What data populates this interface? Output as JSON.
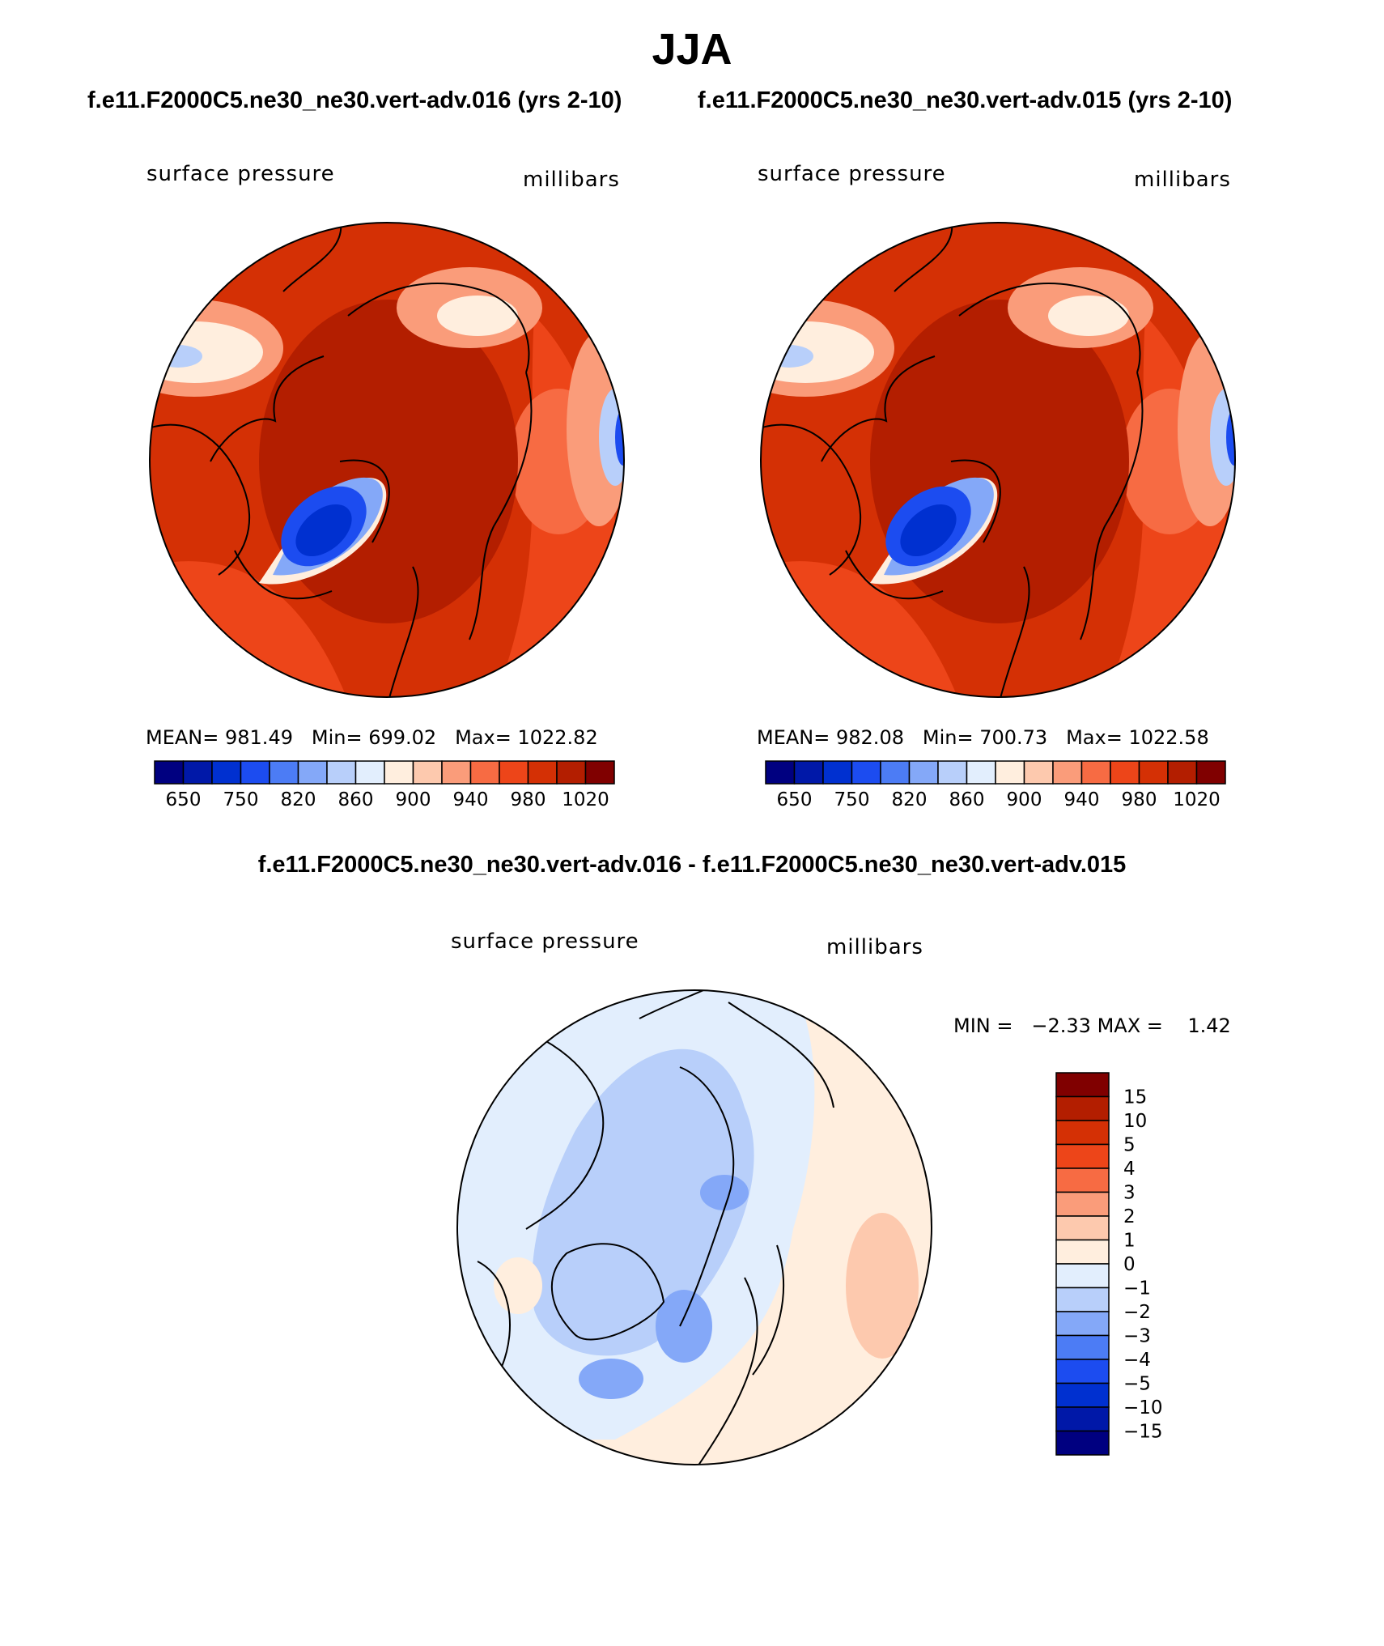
{
  "title": "JJA",
  "panels": [
    {
      "header": "f.e11.F2000C5.ne30_ne30.vert-adv.016 (yrs 2-10)",
      "var_label": "surface pressure",
      "units": "millibars",
      "stats": {
        "mean_label": "MEAN=",
        "mean": "981.49",
        "min_label": "Min=",
        "min": "699.02",
        "max_label": "Max=",
        "max": "1022.82"
      }
    },
    {
      "header": "f.e11.F2000C5.ne30_ne30.vert-adv.015 (yrs 2-10)",
      "var_label": "surface pressure",
      "units": "millibars",
      "stats": {
        "mean_label": "MEAN=",
        "mean": "982.08",
        "min_label": "Min=",
        "min": "700.73",
        "max_label": "Max=",
        "max": "1022.58"
      }
    }
  ],
  "colorbar": {
    "colors": [
      "#000080",
      "#0018A8",
      "#0030D0",
      "#1C4CF0",
      "#4C7CF5",
      "#84A8F8",
      "#B8CFFA",
      "#E2EEFD",
      "#FFEEDE",
      "#FDC9AE",
      "#FA9C7A",
      "#F76B43",
      "#ED4519",
      "#D43005",
      "#B31E00",
      "#800000"
    ],
    "tick_labels": [
      "650",
      "750",
      "820",
      "860",
      "900",
      "940",
      "980",
      "1020"
    ]
  },
  "diff": {
    "header": "f.e11.F2000C5.ne30_ne30.vert-adv.016 - f.e11.F2000C5.ne30_ne30.vert-adv.015",
    "var_label": "surface pressure",
    "units": "millibars",
    "min_label": "MIN =",
    "min": "−2.33",
    "max_label": "MAX =",
    "max": "1.42",
    "levels": [
      "15",
      "10",
      "5",
      "4",
      "3",
      "2",
      "1",
      "0",
      "−1",
      "−2",
      "−3",
      "−4",
      "−5",
      "−10",
      "−15"
    ],
    "colors": [
      "#800000",
      "#B31E00",
      "#D43005",
      "#ED4519",
      "#F76B43",
      "#FA9C7A",
      "#FDC9AE",
      "#FFEEDE",
      "#E2EEFD",
      "#B8CFFA",
      "#84A8F8",
      "#4C7CF5",
      "#1C4CF0",
      "#0030D0",
      "#0018A8",
      "#000080"
    ]
  }
}
